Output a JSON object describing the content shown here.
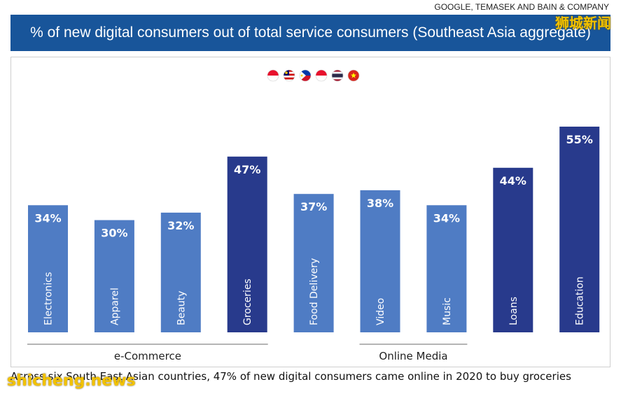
{
  "source": "GOOGLE, TEMASEK AND BAIN & COMPANY",
  "watermark_cn": "狮城新闻",
  "watermark_en": "shicheng.news",
  "title": "% of new digital consumers out of total service consumers (Southeast Asia aggregate)",
  "caption": "Across six South East Asian countries, 47% of new digital consumers came online in 2020 to buy groceries",
  "flags": [
    "Indonesia",
    "Malaysia",
    "Philippines",
    "Singapore",
    "Thailand",
    "Vietnam"
  ],
  "colors": {
    "regular": "#4f7cc4",
    "highlight": "#283a8c",
    "title_bg": "#18559a"
  },
  "chart_data": {
    "type": "bar",
    "categories": [
      "Electronics",
      "Apparel",
      "Beauty",
      "Groceries",
      "Food Delivery",
      "Video",
      "Music",
      "Loans",
      "Education"
    ],
    "values": [
      34,
      30,
      32,
      47,
      37,
      38,
      34,
      44,
      55
    ],
    "value_labels": [
      "34%",
      "30%",
      "32%",
      "47%",
      "37%",
      "38%",
      "34%",
      "44%",
      "55%"
    ],
    "highlighted": [
      false,
      false,
      false,
      true,
      false,
      false,
      false,
      true,
      true
    ],
    "groups": [
      {
        "label": "e-Commerce",
        "start": 0,
        "end": 3
      },
      {
        "label": "Online Media",
        "start": 5,
        "end": 6
      }
    ],
    "ylim": [
      0,
      55
    ]
  }
}
